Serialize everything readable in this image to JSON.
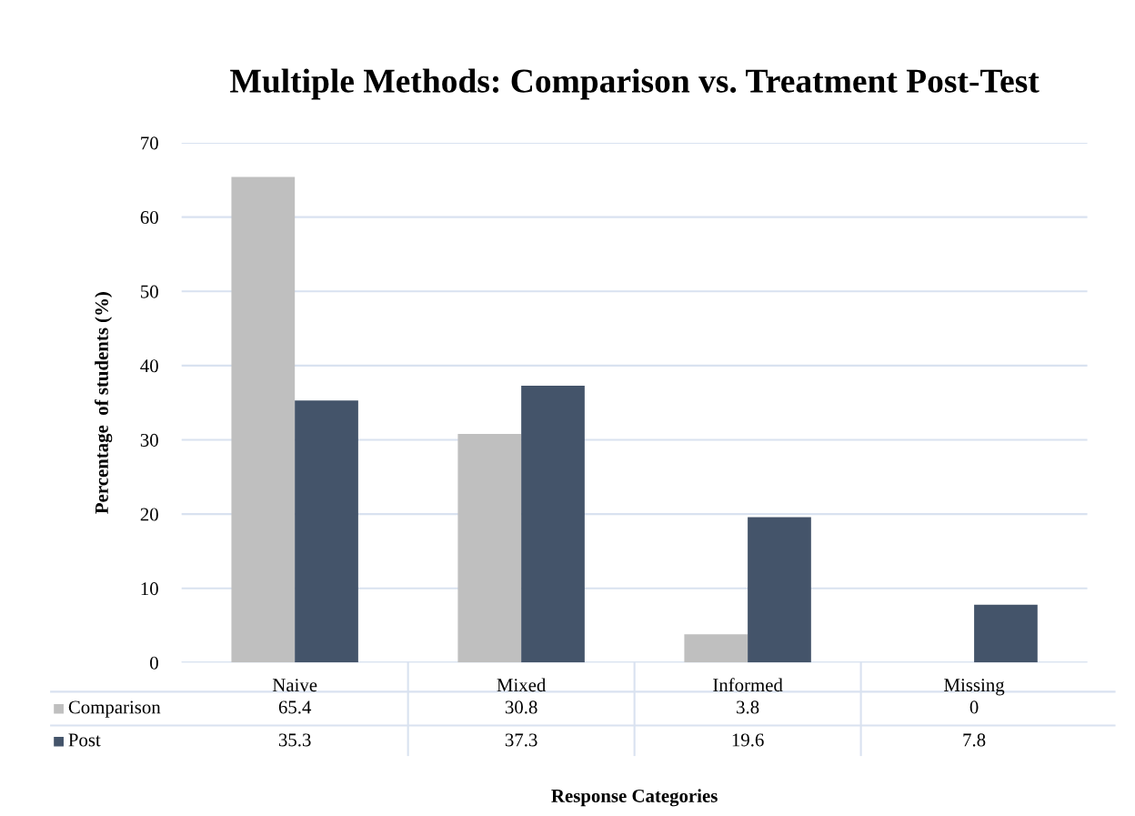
{
  "chart_data": {
    "type": "bar",
    "title": "Multiple Methods: Comparison vs. Treatment Post-Test",
    "xlabel": "Response Categories",
    "ylabel": "Percentage  of students (%)",
    "categories": [
      "Naive",
      "Mixed",
      "Informed",
      "Missing"
    ],
    "series": [
      {
        "name": "Comparison",
        "color": "#bfbfbf",
        "values": [
          65.4,
          30.8,
          3.8,
          0
        ]
      },
      {
        "name": "Post",
        "color": "#44546a",
        "values": [
          35.3,
          37.3,
          19.6,
          7.8
        ]
      }
    ],
    "ylim": [
      0,
      70
    ],
    "yticks": [
      0,
      10,
      20,
      30,
      40,
      50,
      60,
      70
    ],
    "grid": "y",
    "data_labels": true,
    "legend": "bottom"
  }
}
